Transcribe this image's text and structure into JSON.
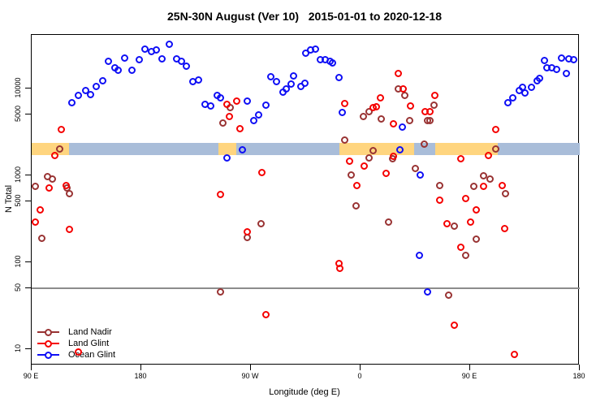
{
  "title": "25N-30N August (Ver 10)   2015-01-01 to 2020-12-18",
  "axes": {
    "y_label": "N Total",
    "x_label": "Longitude (deg E)",
    "y_scale": "log",
    "y_ticks": [
      {
        "label": "10000",
        "value": 10000
      },
      {
        "label": "5000",
        "value": 5000
      },
      {
        "label": "1000",
        "value": 1000
      },
      {
        "label": "500",
        "value": 500
      },
      {
        "label": "100",
        "value": 100
      },
      {
        "label": "50",
        "value": 50
      },
      {
        "label": "10",
        "value": 10
      }
    ],
    "x_ticks": [
      {
        "label": "90 E",
        "deg": 0
      },
      {
        "label": "180",
        "deg": 90
      },
      {
        "label": "90 W",
        "deg": 180
      },
      {
        "label": "0",
        "deg": 270
      },
      {
        "label": "90 E",
        "deg": 360
      },
      {
        "label": "180",
        "deg": 450
      }
    ]
  },
  "colors": {
    "land_nadir": "#993333",
    "land_glint": "#F50000",
    "ocean_glint": "#0F0FF5",
    "band_land": "#FFD57F",
    "band_ocean": "#A9BDD9",
    "reference_line": "#8C8C8C"
  },
  "chart_data": {
    "type": "scatter",
    "title": "25N-30N August (Ver 10)   2015-01-01 to 2020-12-18",
    "xlabel": "Longitude (deg E)",
    "ylabel": "N Total",
    "x_axis_note": "x = degrees eastward along axis starting at 90E (axis wraps 90E-180-90W-0-90E-180, span 450 deg)",
    "x_range": [
      0,
      450
    ],
    "y_range_approx": [
      6,
      40000
    ],
    "grid": false,
    "legend_position": "bottom-left",
    "reference_line": {
      "value": 50
    },
    "band": {
      "y_from": 1714,
      "y_to": 2365,
      "segments": [
        {
          "from": 0,
          "to": 30.7,
          "type": "land"
        },
        {
          "from": 30.7,
          "to": 153.3,
          "type": "ocean"
        },
        {
          "from": 153.3,
          "to": 168,
          "type": "land"
        },
        {
          "from": 168,
          "to": 252.7,
          "type": "ocean"
        },
        {
          "from": 252.7,
          "to": 314,
          "type": "land"
        },
        {
          "from": 314,
          "to": 331.3,
          "type": "ocean"
        },
        {
          "from": 331.3,
          "to": 382.7,
          "type": "land"
        },
        {
          "from": 382.7,
          "to": 450,
          "type": "ocean"
        }
      ]
    },
    "series": [
      {
        "name": "Land Nadir",
        "color_key": "land_nadir",
        "points": [
          [
            13.3,
            978
          ],
          [
            17.3,
            900
          ],
          [
            3.3,
            740
          ],
          [
            28.7,
            724
          ],
          [
            31.3,
            610
          ],
          [
            8,
            187
          ],
          [
            22.7,
            2034
          ],
          [
            162.7,
            5970
          ],
          [
            157.3,
            4050
          ],
          [
            188,
            275
          ],
          [
            177.3,
            191
          ],
          [
            155.3,
            46
          ],
          [
            256.7,
            2523
          ],
          [
            262,
            1021
          ],
          [
            266,
            451
          ],
          [
            272,
            4810
          ],
          [
            277.3,
            5360
          ],
          [
            280,
            1948
          ],
          [
            276.7,
            1605
          ],
          [
            287.3,
            4420
          ],
          [
            292.7,
            293
          ],
          [
            296,
            1571
          ],
          [
            301.3,
            10000
          ],
          [
            306,
            8240
          ],
          [
            310,
            4230
          ],
          [
            315.3,
            1188
          ],
          [
            322,
            2267
          ],
          [
            324.7,
            4320
          ],
          [
            327.3,
            4320
          ],
          [
            330,
            6500
          ],
          [
            335.3,
            772
          ],
          [
            342,
            42
          ],
          [
            347.3,
            258
          ],
          [
            356,
            119
          ],
          [
            362.7,
            740
          ],
          [
            365.3,
            183
          ],
          [
            371.3,
            1000
          ],
          [
            376,
            900
          ],
          [
            380.7,
            2034
          ],
          [
            389.3,
            610
          ]
        ]
      },
      {
        "name": "Land Glint",
        "color_key": "land_glint",
        "points": [
          [
            24,
            3340
          ],
          [
            18.7,
            1712
          ],
          [
            14,
            724
          ],
          [
            28,
            772
          ],
          [
            6.7,
            397
          ],
          [
            2.7,
            288
          ],
          [
            31.3,
            237
          ],
          [
            38,
            9.2
          ],
          [
            160,
            6640
          ],
          [
            168,
            7240
          ],
          [
            162,
            4710
          ],
          [
            171.3,
            3410
          ],
          [
            188.7,
            1088
          ],
          [
            154.7,
            597
          ],
          [
            177.3,
            222
          ],
          [
            192,
            24.9
          ],
          [
            257.3,
            6780
          ],
          [
            261.3,
            1473
          ],
          [
            272.7,
            1294
          ],
          [
            266.7,
            756
          ],
          [
            252,
            96
          ],
          [
            253.3,
            86
          ],
          [
            280,
            5970
          ],
          [
            283.3,
            6100
          ],
          [
            286,
            7730
          ],
          [
            296.7,
            3950
          ],
          [
            291.3,
            1065
          ],
          [
            297.3,
            1676
          ],
          [
            301.3,
            15000
          ],
          [
            305.3,
            10000
          ],
          [
            311.3,
            6360
          ],
          [
            322.7,
            5360
          ],
          [
            326.7,
            5360
          ],
          [
            331.3,
            8410
          ],
          [
            335.3,
            524
          ],
          [
            340.7,
            275
          ],
          [
            352,
            1538
          ],
          [
            356,
            547
          ],
          [
            360,
            288
          ],
          [
            365.3,
            397
          ],
          [
            371.3,
            740
          ],
          [
            375.3,
            1712
          ],
          [
            381.3,
            3340
          ],
          [
            386,
            772
          ],
          [
            388,
            242
          ],
          [
            352,
            150
          ],
          [
            347.3,
            18.8
          ],
          [
            396,
            8.7
          ]
        ]
      },
      {
        "name": "Ocean Glint",
        "color_key": "ocean_glint",
        "points": [
          [
            32.7,
            6930
          ],
          [
            38,
            8240
          ],
          [
            44,
            9570
          ],
          [
            48,
            8600
          ],
          [
            52.7,
            10440
          ],
          [
            58,
            12400
          ],
          [
            63.3,
            20350
          ],
          [
            68,
            17130
          ],
          [
            71.3,
            16400
          ],
          [
            76,
            22650
          ],
          [
            82,
            16400
          ],
          [
            88,
            21250
          ],
          [
            93.3,
            28100
          ],
          [
            98,
            26350
          ],
          [
            102,
            27600
          ],
          [
            107.3,
            21700
          ],
          [
            112.7,
            32000
          ],
          [
            118.7,
            21700
          ],
          [
            122.7,
            20350
          ],
          [
            127.3,
            17900
          ],
          [
            132,
            12130
          ],
          [
            137.3,
            12660
          ],
          [
            142,
            6640
          ],
          [
            146.7,
            6240
          ],
          [
            152,
            8410
          ],
          [
            155.3,
            7730
          ],
          [
            160,
            1605
          ],
          [
            173.3,
            1990
          ],
          [
            176.7,
            7100
          ],
          [
            182,
            4230
          ],
          [
            186,
            4920
          ],
          [
            192,
            6500
          ],
          [
            196,
            13800
          ],
          [
            201.3,
            12130
          ],
          [
            206,
            9170
          ],
          [
            209.3,
            10000
          ],
          [
            212.7,
            11150
          ],
          [
            215.3,
            14100
          ],
          [
            221.3,
            10440
          ],
          [
            224,
            11600
          ],
          [
            224.7,
            25250
          ],
          [
            228.7,
            27600
          ],
          [
            232.7,
            28700
          ],
          [
            236.7,
            21250
          ],
          [
            240.7,
            21250
          ],
          [
            244.7,
            20350
          ],
          [
            246.7,
            19500
          ],
          [
            252,
            13500
          ],
          [
            255.3,
            5250
          ],
          [
            302,
            1990
          ],
          [
            304,
            3560
          ],
          [
            318,
            119
          ],
          [
            319.3,
            1021
          ],
          [
            324.7,
            46
          ],
          [
            391.3,
            6930
          ],
          [
            394.7,
            7870
          ],
          [
            400,
            9570
          ],
          [
            402.7,
            10220
          ],
          [
            405.3,
            8960
          ],
          [
            410,
            10220
          ],
          [
            415.3,
            12400
          ],
          [
            417.3,
            13200
          ],
          [
            420.7,
            20800
          ],
          [
            423.3,
            17130
          ],
          [
            426.7,
            17130
          ],
          [
            431.3,
            16760
          ],
          [
            435.3,
            22650
          ],
          [
            439.3,
            15000
          ],
          [
            441.3,
            21700
          ],
          [
            445.3,
            21250
          ]
        ]
      }
    ]
  },
  "legend": {
    "items": [
      {
        "label": "Land Nadir",
        "color_key": "land_nadir"
      },
      {
        "label": "Land Glint",
        "color_key": "land_glint"
      },
      {
        "label": "Ocean Glint",
        "color_key": "ocean_glint"
      }
    ]
  }
}
